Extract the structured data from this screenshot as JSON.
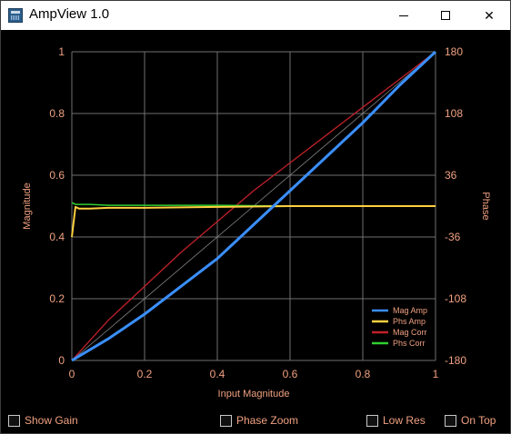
{
  "window": {
    "title": "AmpView 1.0",
    "controls": {
      "minimize": "—",
      "maximize": "☐",
      "close": "✕"
    }
  },
  "colors": {
    "background": "#000000",
    "axis_text": "#f0a080",
    "grid": "#707070",
    "mag_amp": "#3a8fff",
    "phs_amp": "#ffd040",
    "mag_corr": "#c0202a",
    "phs_corr": "#30d030",
    "diagonal": "#808080"
  },
  "checkboxes": [
    {
      "label": "Show Gain",
      "checked": false
    },
    {
      "label": "Phase Zoom",
      "checked": false
    },
    {
      "label": "Low Res",
      "checked": false
    },
    {
      "label": "On Top",
      "checked": false
    }
  ],
  "chart_data": {
    "type": "line",
    "xlabel": "Input Magnitude",
    "ylabel": "Magnitude",
    "y2label": "Phase",
    "xlim": [
      0,
      1
    ],
    "ylim": [
      0,
      1
    ],
    "y2lim": [
      -180,
      180
    ],
    "x_ticks": [
      "0",
      "0.2",
      "0.4",
      "0.6",
      "0.8",
      "1"
    ],
    "y_ticks": [
      "0",
      "0.2",
      "0.4",
      "0.6",
      "0.8",
      "1"
    ],
    "y2_ticks": [
      "-180",
      "-108",
      "-36",
      "36",
      "108",
      "180"
    ],
    "grid": true,
    "legend_position": "bottom-right",
    "series": [
      {
        "name": "Mag Amp",
        "axis": "left",
        "x": [
          0,
          0.1,
          0.2,
          0.3,
          0.4,
          0.5,
          0.6,
          0.7,
          0.8,
          0.9,
          1.0
        ],
        "values": [
          0,
          0.07,
          0.15,
          0.24,
          0.33,
          0.44,
          0.55,
          0.66,
          0.77,
          0.89,
          1.0
        ]
      },
      {
        "name": "Phs Amp",
        "axis": "right",
        "x": [
          0,
          0.01,
          0.02,
          0.05,
          0.1,
          0.2,
          0.4,
          0.6,
          0.8,
          1.0
        ],
        "values": [
          -36,
          -1,
          -3,
          -3,
          -2,
          -2,
          -1,
          0,
          0,
          0
        ]
      },
      {
        "name": "Mag Corr",
        "axis": "left",
        "x": [
          0,
          0.1,
          0.2,
          0.3,
          0.4,
          0.5,
          0.6,
          0.7,
          0.8,
          0.9,
          1.0
        ],
        "values": [
          0,
          0.13,
          0.24,
          0.35,
          0.45,
          0.55,
          0.64,
          0.73,
          0.82,
          0.91,
          1.0
        ]
      },
      {
        "name": "Phs Corr",
        "axis": "right",
        "x": [
          0,
          0.01,
          0.03,
          0.05,
          0.1,
          0.2,
          0.4,
          0.6,
          0.8,
          1.0
        ],
        "values": [
          4,
          2,
          2,
          2,
          1,
          1,
          1,
          0,
          0,
          0
        ]
      }
    ],
    "reference_line": {
      "x": [
        0,
        1
      ],
      "values": [
        0,
        1
      ]
    }
  }
}
